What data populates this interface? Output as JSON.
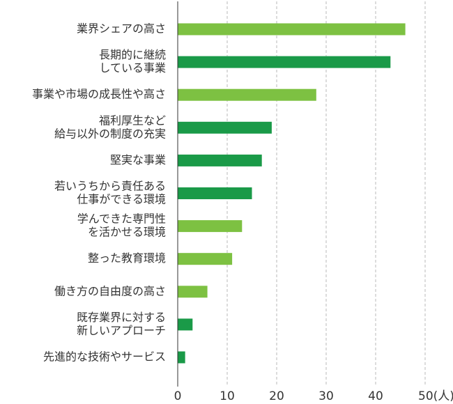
{
  "chart_data": {
    "type": "bar",
    "orientation": "horizontal",
    "categories": [
      [
        "業界シェアの高さ"
      ],
      [
        "長期的に継続",
        "している事業"
      ],
      [
        "事業や市場の成長性や高さ"
      ],
      [
        "福利厚生など",
        "給与以外の制度の充実"
      ],
      [
        "堅実な事業"
      ],
      [
        "若いうちから責任ある",
        "仕事ができる環境"
      ],
      [
        "学んできた専門性",
        "を活かせる環境"
      ],
      [
        "整った教育環境"
      ],
      [
        "働き方の自由度の高さ"
      ],
      [
        "既存業界に対する",
        "新しいアプローチ"
      ],
      [
        "先進的な技術やサービス"
      ]
    ],
    "values": [
      46,
      43,
      28,
      19,
      17,
      15,
      13,
      11,
      6,
      3,
      1.5
    ],
    "bar_colors": [
      "#7dc142",
      "#1a9a48",
      "#7dc142",
      "#1a9a48",
      "#1a9a48",
      "#1a9a48",
      "#7dc142",
      "#7dc142",
      "#7dc142",
      "#1a9a48",
      "#1a9a48"
    ],
    "xlim": [
      0,
      50
    ],
    "xticks": [
      "0",
      "10",
      "20",
      "30",
      "40",
      "50(人)"
    ],
    "grid": true,
    "title": "",
    "xlabel": "",
    "ylabel": ""
  }
}
